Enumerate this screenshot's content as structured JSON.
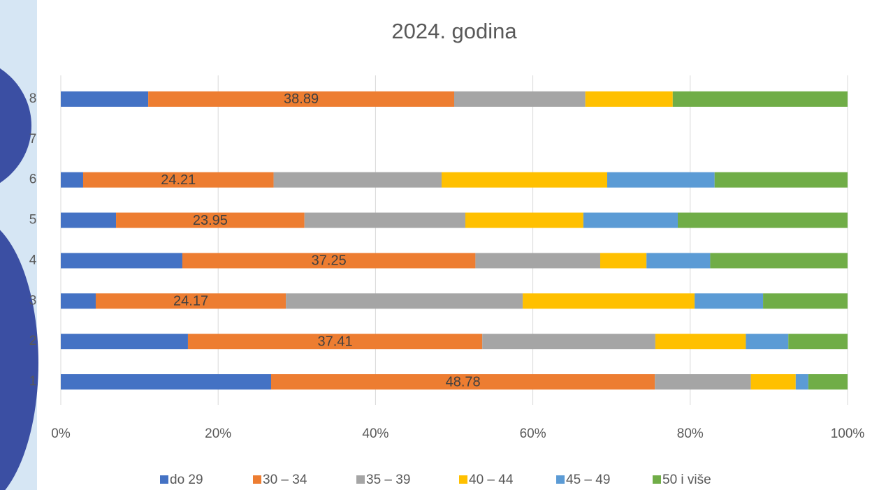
{
  "chart_data": {
    "type": "stacked-barh-percent",
    "title": "2024. godina",
    "categories": [
      "1",
      "2",
      "3",
      "4",
      "5",
      "6",
      "7",
      "8"
    ],
    "series": [
      {
        "name": "do 29",
        "color": "#4472c4",
        "values": [
          26.73,
          16.16,
          4.44,
          15.45,
          7.02,
          2.84,
          null,
          11.11
        ]
      },
      {
        "name": "30 – 34",
        "color": "#ed7d31",
        "show_labels": true,
        "values": [
          48.78,
          37.41,
          24.17,
          37.25,
          23.95,
          24.21,
          null,
          38.89
        ]
      },
      {
        "name": "35 – 39",
        "color": "#a5a5a5",
        "values": [
          12.2,
          22.0,
          30.1,
          15.86,
          20.45,
          21.35,
          null,
          16.67
        ]
      },
      {
        "name": "40 – 44",
        "color": "#ffc000",
        "values": [
          5.7,
          11.5,
          21.85,
          5.88,
          15.0,
          21.05,
          null,
          11.11
        ]
      },
      {
        "name": "45 – 49",
        "color": "#5b9bd5",
        "values": [
          1.6,
          5.4,
          8.7,
          8.1,
          12.0,
          13.65,
          null,
          0
        ]
      },
      {
        "name": "50 i više",
        "color": "#70ad47",
        "values": [
          4.99,
          7.53,
          10.74,
          17.46,
          21.58,
          16.9,
          null,
          22.22
        ]
      }
    ],
    "xlim": [
      0,
      100
    ],
    "xticks": [
      {
        "value": 0,
        "label": "0%"
      },
      {
        "value": 20,
        "label": "20%"
      },
      {
        "value": 40,
        "label": "40%"
      },
      {
        "value": 60,
        "label": "60%"
      },
      {
        "value": 80,
        "label": "80%"
      },
      {
        "value": 100,
        "label": "100%"
      }
    ],
    "grid": true,
    "legend": "bottom"
  }
}
